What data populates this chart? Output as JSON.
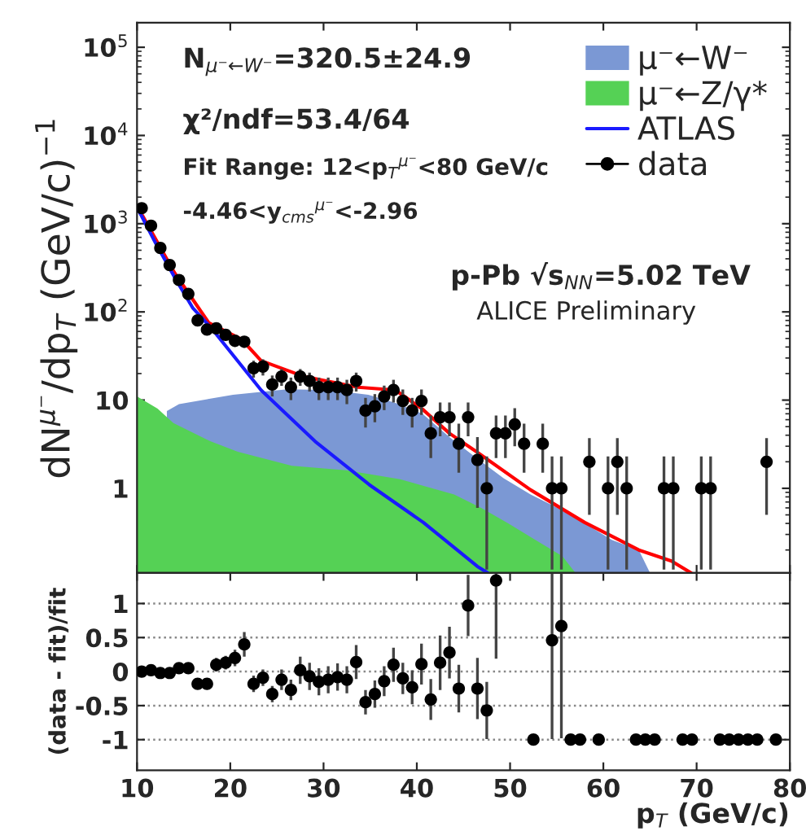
{
  "chart_data": [
    {
      "type": "line",
      "ylabel": "dN$^{μ⁻}$/dp$_{T}$ (GeV/c)$^{−1}$",
      "log": "y",
      "legend": "top right",
      "tick_labels": "y",
      "xlim": [
        10,
        80
      ],
      "ylim": [
        0.11,
        190000
      ],
      "yticks": [
        {
          "value": 1,
          "label": "1"
        },
        {
          "value": 10,
          "label": "10"
        },
        {
          "value": 100,
          "label": "10$^{2}$"
        },
        {
          "value": 1000,
          "label": "10$^{3}$"
        },
        {
          "value": 10000,
          "label": "10$^{4}$"
        },
        {
          "value": 100000,
          "label": "10$^{5}$"
        }
      ],
      "annotations": [
        "N$_{μ⁻←W⁻}$=320.5±24.9",
        "χ²/ndf=53.4/64",
        "Fit Range: 12<p$_{T}$$^{μ⁻}$<80 GeV/c",
        "-4.46<y$_{cms}$$^{μ⁻}$<-2.96",
        "p-Pb √s$_{NN}$=5.02 TeV",
        "ALICE Preliminary"
      ],
      "series": [
        {
          "name": "μ⁻←W⁻",
          "type": "area",
          "color": "#7b98d4",
          "x": [
            13.2,
            14.5,
            20.3,
            26.1,
            30.7,
            34.8,
            37.7,
            40.6,
            43.5,
            46.4,
            49.3,
            52.2,
            55.1,
            58,
            60.9,
            63.8,
            65
          ],
          "values": [
            7.5,
            9,
            11.5,
            13.3,
            13,
            11.5,
            9.3,
            7,
            3.8,
            2.2,
            1.3,
            0.85,
            0.6,
            0.4,
            0.26,
            0.2,
            0.11
          ]
        },
        {
          "name": "μ⁻←Z/γ*",
          "type": "area",
          "color": "#55d155",
          "x": [
            10,
            12.2,
            13.9,
            17.9,
            20.8,
            26.6,
            32.4,
            38.2,
            44,
            46.9,
            49.8,
            52.7,
            55.6,
            57
          ],
          "values": [
            11,
            8,
            5.5,
            3.4,
            2.6,
            1.8,
            1.6,
            1.27,
            0.85,
            0.6,
            0.4,
            0.26,
            0.17,
            0.11
          ]
        },
        {
          "type": "line",
          "color": "#ff0000",
          "x": [
            10.3,
            14,
            17.7,
            21.2,
            23.3,
            27.9,
            33.7,
            37.7,
            40.6,
            43.5,
            46.4,
            52.2,
            58,
            63.8,
            67.3,
            69.4
          ],
          "values": [
            1400,
            280,
            75,
            49,
            28,
            18.5,
            14,
            13,
            7.9,
            4.2,
            2.6,
            0.96,
            0.41,
            0.2,
            0.15,
            0.11
          ]
        },
        {
          "name": "ATLAS",
          "type": "line",
          "color": "#1a1aff",
          "x": [
            10.2,
            12,
            14,
            16,
            18,
            23.3,
            29.1,
            34.9,
            40.7,
            46.5,
            47.6
          ],
          "values": [
            1400,
            600,
            250,
            110,
            65,
            13,
            3.4,
            1.1,
            0.41,
            0.13,
            0.11
          ]
        },
        {
          "name": "data",
          "type": "scatter",
          "marker": "circle",
          "color": "#000000",
          "x": [
            10.5,
            11.5,
            12.5,
            13.5,
            14.5,
            15.5,
            16.5,
            17.5,
            18.5,
            19.5,
            20.5,
            21.5,
            22.5,
            23.5,
            24.5,
            25.5,
            26.5,
            27.5,
            28.5,
            29.5,
            30.5,
            31.5,
            32.5,
            33.5,
            34.5,
            35.5,
            36.5,
            37.5,
            38.5,
            39.5,
            40.5,
            41.5,
            42.5,
            43.5,
            44.5,
            45.5,
            46.5,
            47.5,
            48.5,
            49.5,
            50.5,
            51.5,
            53.5,
            54.5,
            55.5,
            58.5,
            60.5,
            61.5,
            62.5,
            66.5,
            67.5,
            70.5,
            71.5,
            77.5
          ],
          "values": [
            1500,
            950,
            530,
            340,
            230,
            160,
            80,
            63,
            65,
            55,
            47,
            46,
            23,
            24,
            15,
            18.5,
            14,
            18.5,
            16.5,
            14,
            14,
            14,
            13,
            16.5,
            7.6,
            8.5,
            11,
            13,
            9.8,
            7.6,
            9.8,
            4.2,
            6.4,
            6.4,
            3.2,
            6.4,
            2.1,
            1,
            4.2,
            4.2,
            5.3,
            3.2,
            3.2,
            1,
            1,
            2,
            1,
            2,
            1,
            1,
            1,
            1,
            1,
            2
          ],
          "errors": [
            40,
            30,
            23,
            18,
            15,
            13,
            9,
            8,
            8,
            7,
            7,
            7,
            5,
            5,
            4,
            4,
            4,
            4,
            4,
            4,
            4,
            4,
            4,
            4,
            [
              4.9,
              10.6
            ],
            [
              5.6,
              11.7
            ],
            [
              7.7,
              14.6
            ],
            [
              9.4,
              17
            ],
            [
              6.8,
              13.2
            ],
            [
              4.9,
              10.6
            ],
            [
              6.8,
              13.2
            ],
            [
              2.2,
              6.7
            ],
            [
              3.9,
              9.4
            ],
            [
              3.9,
              9.4
            ],
            [
              1.5,
              5.4
            ],
            [
              3.9,
              9.4
            ],
            [
              0.6,
              3.8
            ],
            [
              0.12,
              2.3
            ],
            [
              2.2,
              6.7
            ],
            [
              2.2,
              6.7
            ],
            [
              3,
              8.1
            ],
            [
              1.5,
              5.4
            ],
            [
              1.5,
              5.4
            ],
            [
              0.12,
              2.3
            ],
            [
              0.12,
              2.3
            ],
            [
              0.5,
              3.7
            ],
            [
              0.12,
              2.3
            ],
            [
              0.5,
              3.7
            ],
            [
              0.12,
              2.3
            ],
            [
              0.12,
              2.3
            ],
            [
              0.12,
              2.3
            ],
            [
              0.12,
              2.3
            ],
            [
              0.12,
              2.3
            ],
            [
              0.5,
              3.7
            ]
          ]
        }
      ]
    },
    {
      "type": "scatter",
      "xlabel": "p$_{T}$ (GeV/c)",
      "ylabel": "(data - fit)/fit",
      "grid": "y",
      "marker": "circle",
      "xlim": [
        10,
        80
      ],
      "ylim": [
        -1.45,
        1.45
      ],
      "xticks": [
        10,
        20,
        30,
        40,
        50,
        60,
        70,
        80
      ],
      "yticks": [
        -1,
        -0.5,
        0,
        0.5,
        1
      ],
      "series": [
        {
          "color": "#000000",
          "x": [
            10.5,
            11.5,
            12.5,
            13.5,
            14.5,
            15.5,
            16.5,
            17.5,
            18.5,
            19.5,
            20.5,
            21.5,
            22.5,
            23.5,
            24.5,
            25.5,
            26.5,
            27.5,
            28.5,
            29.5,
            30.5,
            31.5,
            32.5,
            33.5,
            34.5,
            35.5,
            36.5,
            37.5,
            38.5,
            39.5,
            40.5,
            41.5,
            42.5,
            43.5,
            44.5,
            45.5,
            46.5,
            47.5,
            48.5,
            52.5,
            54.5,
            55.5,
            56.5,
            57.5,
            59.5,
            63.5,
            64.5,
            65.5,
            68.5,
            69.5,
            72.5,
            73.5,
            74.5,
            75.5,
            76.5,
            78.5
          ],
          "values": [
            0,
            0.02,
            -0.02,
            -0.02,
            0.05,
            0.05,
            -0.18,
            -0.18,
            0.1,
            0.13,
            0.2,
            0.4,
            -0.18,
            -0.09,
            -0.33,
            -0.12,
            -0.27,
            0.02,
            -0.07,
            -0.15,
            -0.12,
            -0.08,
            -0.12,
            0.14,
            -0.45,
            -0.33,
            -0.14,
            0.1,
            -0.1,
            -0.23,
            0.11,
            -0.41,
            0.13,
            0.28,
            -0.25,
            0.97,
            -0.25,
            -0.57,
            1.34,
            -1,
            0.46,
            0.67,
            -1,
            -1,
            -1,
            -1,
            -1,
            -1,
            -1,
            -1,
            -1,
            -1,
            -1,
            -1,
            -1,
            -1
          ],
          "errors": [
            0.03,
            0.03,
            0.03,
            0.03,
            0.03,
            0.03,
            0.05,
            0.05,
            0.1,
            0.1,
            0.12,
            0.18,
            0.12,
            0.12,
            0.12,
            0.15,
            0.15,
            0.2,
            0.2,
            0.2,
            0.2,
            0.2,
            0.2,
            0.25,
            0.18,
            0.2,
            0.22,
            0.25,
            0.23,
            0.25,
            0.3,
            0.3,
            0.4,
            0.38,
            0.35,
            0.45,
            0.45,
            0.42,
            [
              0.19,
              1.44
            ],
            null,
            [
              -0.99,
              1.44
            ],
            [
              -0.98,
              1.44
            ],
            null,
            null,
            null,
            null,
            null,
            null,
            null,
            null,
            null,
            null,
            null,
            null,
            null,
            null
          ]
        }
      ]
    }
  ]
}
